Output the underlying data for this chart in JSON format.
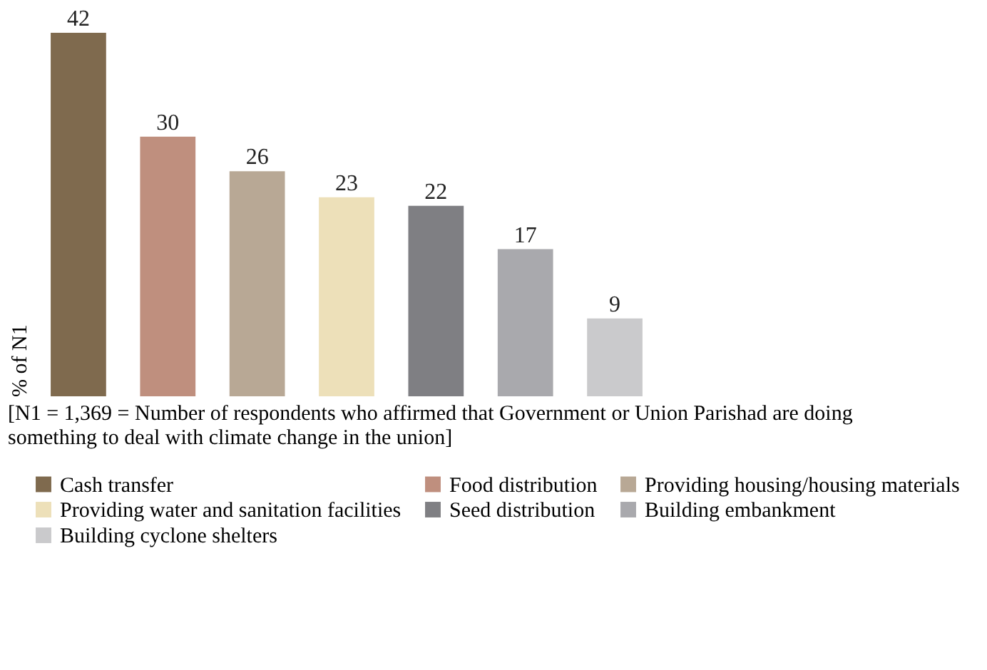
{
  "chart_data": {
    "type": "bar",
    "ylabel": "% of N1",
    "categories": [
      null,
      null,
      null,
      null,
      null,
      null,
      null
    ],
    "series": [
      {
        "name": "Cash transfer",
        "color": "#7f6a4e",
        "values": [
          42,
          null,
          null,
          null,
          null,
          null,
          null
        ]
      },
      {
        "name": "Food distribution",
        "color": "#bf8f7e",
        "values": [
          null,
          30,
          null,
          null,
          null,
          null,
          null
        ]
      },
      {
        "name": "Providing housing/housing materials",
        "color": "#b8a895",
        "values": [
          null,
          null,
          26,
          null,
          null,
          null,
          null
        ]
      },
      {
        "name": "Providing water and sanitation facilities",
        "color": "#ede0b9",
        "values": [
          null,
          null,
          null,
          23,
          null,
          null,
          null
        ]
      },
      {
        "name": "Seed distribution",
        "color": "#7f7f83",
        "values": [
          null,
          null,
          null,
          null,
          22,
          null,
          null
        ]
      },
      {
        "name": "Building embankment",
        "color": "#a9a9ad",
        "values": [
          null,
          null,
          null,
          null,
          null,
          17,
          null
        ]
      },
      {
        "name": "Building cyclone shelters",
        "color": "#cacacc",
        "values": [
          null,
          null,
          null,
          null,
          null,
          null,
          9
        ]
      }
    ],
    "stacked": true,
    "data_labels": true,
    "tick_labels": false,
    "grid": false,
    "legend": "bottom",
    "annotations": [
      "[N1 = 1,369 = Number of respondents who affirmed that Government or Union Parishad are doing something to deal with climate change in the union]"
    ]
  }
}
